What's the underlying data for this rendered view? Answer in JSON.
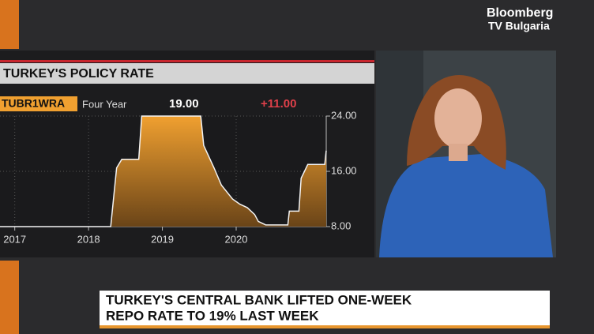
{
  "logo": {
    "line1": "Bloomberg",
    "line2": "TV Bulgaria"
  },
  "lower_third": {
    "line1": "TURKEY'S CENTRAL BANK LIFTED ONE-WEEK",
    "line2": "REPO RATE TO 19% LAST WEEK"
  },
  "chart_data": {
    "type": "area",
    "title": "TURKEY'S POLICY RATE",
    "ticker": "TUBR1WRA",
    "period": "Four Year",
    "last_value": "19.00",
    "change": "+11.00",
    "x": [
      2016.8,
      2018.3,
      2018.38,
      2018.45,
      2018.68,
      2018.72,
      2019.52,
      2019.56,
      2019.7,
      2019.8,
      2019.95,
      2020.05,
      2020.15,
      2020.25,
      2020.3,
      2020.4,
      2020.7,
      2020.72,
      2020.85,
      2020.88,
      2020.97,
      2021.2,
      2021.22
    ],
    "series": [
      {
        "name": "TUBR1WRA",
        "color": "#e8962e",
        "values": [
          8,
          8,
          16.5,
          17.75,
          17.75,
          24,
          24,
          19.75,
          16.5,
          14,
          12,
          11.25,
          10.75,
          9.75,
          8.75,
          8.25,
          8.25,
          10.25,
          10.25,
          15,
          17,
          17,
          19
        ]
      }
    ],
    "xlim": [
      2016.8,
      2021.22
    ],
    "xticks": [
      2017,
      2018,
      2019,
      2020
    ],
    "ylim": [
      8,
      24
    ],
    "yticks": [
      {
        "value": 8,
        "label": "8.00"
      },
      {
        "value": 16,
        "label": "16.00"
      },
      {
        "value": 24,
        "label": "24.00"
      }
    ],
    "grid": true
  }
}
